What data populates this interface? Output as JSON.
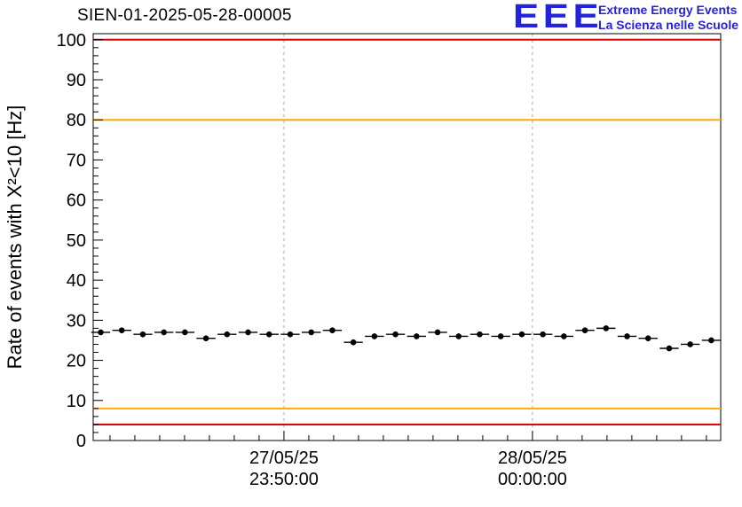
{
  "header": {
    "title": "SIEN-01-2025-05-28-00005",
    "logo": {
      "acronym": "EEE",
      "line1": "Extreme Energy Events",
      "line2": "La Scienza nelle Scuole",
      "color": "#2323dd"
    }
  },
  "chart_data": {
    "type": "scatter",
    "title": "SIEN-01-2025-05-28-00005",
    "ylabel": "Rate of events with X²<10 [Hz]",
    "ylim": [
      0,
      100
    ],
    "axis_max": 101.5,
    "yticks": [
      0,
      10,
      20,
      30,
      40,
      50,
      60,
      70,
      80,
      90,
      100
    ],
    "y_minor_step": 2,
    "grid": "vertical-dashed",
    "x_gridlines": [
      {
        "frac": 0.304,
        "date": "27/05/25",
        "time": "23:50:00"
      },
      {
        "frac": 0.7,
        "date": "28/05/25",
        "time": "00:00:00"
      }
    ],
    "x_minor_step_frac": 0.0396,
    "reference_lines": [
      {
        "value": 100,
        "color": "#cc0000",
        "name": "upper-alarm"
      },
      {
        "value": 80,
        "color": "#ffaa00",
        "name": "upper-warning"
      },
      {
        "value": 8,
        "color": "#ffaa00",
        "name": "lower-warning"
      },
      {
        "value": 4,
        "color": "#cc0000",
        "name": "lower-alarm"
      }
    ],
    "x_start_frac": 0.012,
    "x_end_frac": 0.985,
    "yerr": 0.7,
    "series": [
      {
        "name": "event-rate",
        "marker": "circle",
        "color": "#000000",
        "values": [
          27.0,
          27.5,
          26.5,
          27.0,
          27.0,
          25.5,
          26.5,
          27.0,
          26.5,
          26.5,
          27.0,
          27.5,
          24.5,
          26.0,
          26.5,
          26.0,
          27.0,
          26.0,
          26.5,
          26.0,
          26.5,
          26.5,
          26.0,
          27.5,
          28.0,
          26.0,
          25.5,
          23.0,
          24.0,
          25.0
        ]
      }
    ]
  }
}
